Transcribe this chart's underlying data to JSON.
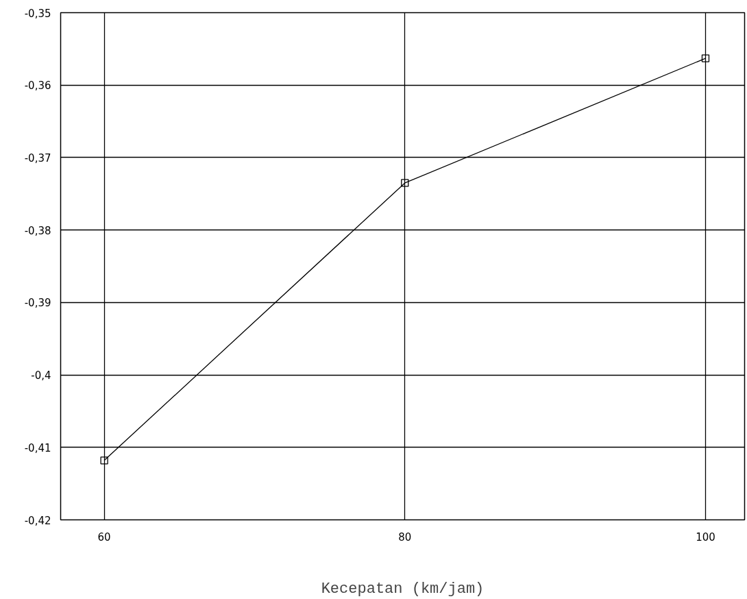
{
  "chart_data": {
    "type": "line",
    "xlabel": "Kecepatan (km/jam)",
    "x": [
      60,
      80,
      100
    ],
    "series": [
      {
        "color": "#000000",
        "values": [
          -0.4118,
          -0.3735,
          -0.3563
        ]
      }
    ],
    "xlim": [
      57.1,
      102.6
    ],
    "xticks": [
      60,
      80,
      100
    ],
    "ylim": [
      -0.42,
      -0.35
    ],
    "yticks": [
      {
        "value": -0.42,
        "label": "-0,42"
      },
      {
        "value": -0.41,
        "label": "-0,41"
      },
      {
        "value": -0.4,
        "label": "-0,4"
      },
      {
        "value": -0.39,
        "label": "-0,39"
      },
      {
        "value": -0.38,
        "label": "-0,38"
      },
      {
        "value": -0.37,
        "label": "-0,37"
      },
      {
        "value": -0.36,
        "label": "-0,36"
      },
      {
        "value": -0.35,
        "label": "-0,35"
      }
    ],
    "grid": true,
    "marker": "square",
    "line_style": "solid"
  }
}
